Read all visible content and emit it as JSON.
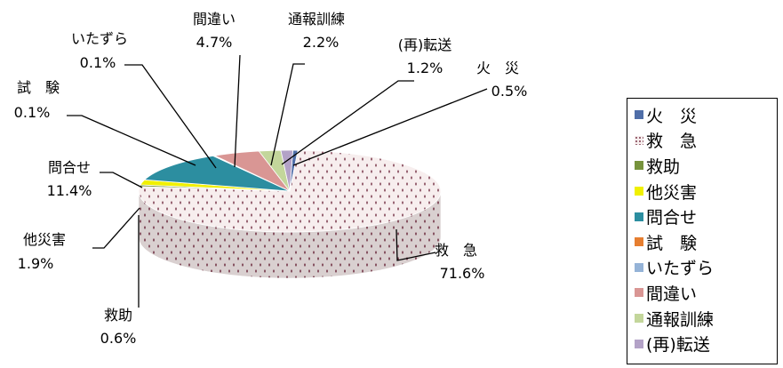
{
  "chart_data": {
    "type": "pie",
    "title": "",
    "legend_position": "right",
    "slices": [
      {
        "label": "火　災",
        "value_label": "0.5%",
        "value": 0.5,
        "color": "#4f6ea8",
        "pattern": "solid"
      },
      {
        "label": "救　急",
        "value_label": "71.6%",
        "value": 71.6,
        "color": "#f2e4e4",
        "pattern": "dots"
      },
      {
        "label": "救助",
        "value_label": "0.6%",
        "value": 0.6,
        "color": "#77933c",
        "pattern": "solid"
      },
      {
        "label": "他災害",
        "value_label": "1.9%",
        "value": 1.9,
        "color": "#f0f000",
        "pattern": "solid"
      },
      {
        "label": "問合せ",
        "value_label": "11.4%",
        "value": 11.4,
        "color": "#2c8ea0",
        "pattern": "solid"
      },
      {
        "label": "試　験",
        "value_label": "0.1%",
        "value": 0.1,
        "color": "#e67e30",
        "pattern": "solid"
      },
      {
        "label": "いたずら",
        "value_label": "0.1%",
        "value": 0.1,
        "color": "#95b3d7",
        "pattern": "solid"
      },
      {
        "label": "間違い",
        "value_label": "4.7%",
        "value": 4.7,
        "color": "#d99694",
        "pattern": "solid"
      },
      {
        "label": "通報訓練",
        "value_label": "2.2%",
        "value": 2.2,
        "color": "#c3d69b",
        "pattern": "solid"
      },
      {
        "label": "(再)転送",
        "value_label": "1.2%",
        "value": 1.2,
        "color": "#b3a2c7",
        "pattern": "solid"
      }
    ]
  },
  "legend": {
    "items": [
      {
        "label": "火　災",
        "color": "#4f6ea8"
      },
      {
        "label": "救　急",
        "color": "#f2e4e4"
      },
      {
        "label": "救助",
        "color": "#77933c"
      },
      {
        "label": "他災害",
        "color": "#f0f000"
      },
      {
        "label": "問合せ",
        "color": "#2c8ea0"
      },
      {
        "label": "試　験",
        "color": "#e67e30"
      },
      {
        "label": "いたずら",
        "color": "#95b3d7"
      },
      {
        "label": "間違い",
        "color": "#d99694"
      },
      {
        "label": "通報訓練",
        "color": "#c3d69b"
      },
      {
        "label": "(再)転送",
        "color": "#b3a2c7"
      }
    ]
  }
}
